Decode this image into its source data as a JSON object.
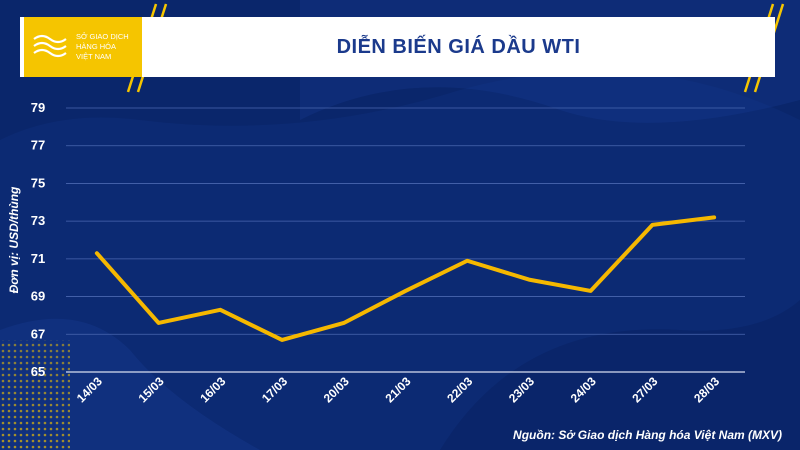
{
  "header": {
    "title": "DIỄN BIẾN GIÁ DẦU WTI",
    "logo_lines": [
      "SỞ GIAO DỊCH",
      "HÀNG HÓA",
      "VIỆT NAM"
    ]
  },
  "unit_label": "Đơn vị: USD/thùng",
  "source": "Nguồn: Sở Giao dịch Hàng hóa Việt Nam (MXV)",
  "colors": {
    "background": "#0c2a73",
    "line": "#f5b800",
    "header_bg": "#ffffff",
    "title": "#1b3a8c",
    "accent": "#f5c500"
  },
  "chart_data": {
    "type": "line",
    "title": "DIỄN BIẾN GIÁ DẦU WTI",
    "xlabel": "",
    "ylabel": "Đơn vị: USD/thùng",
    "categories": [
      "14/03",
      "15/03",
      "16/03",
      "17/03",
      "20/03",
      "21/03",
      "22/03",
      "23/03",
      "24/03",
      "27/03",
      "28/03"
    ],
    "values": [
      71.3,
      67.6,
      68.3,
      66.7,
      67.6,
      69.3,
      70.9,
      69.9,
      69.3,
      72.8,
      73.2
    ],
    "ylim": [
      65,
      79
    ],
    "yticks": [
      65,
      67,
      69,
      71,
      73,
      75,
      77,
      79
    ],
    "grid": true,
    "legend": "none"
  }
}
